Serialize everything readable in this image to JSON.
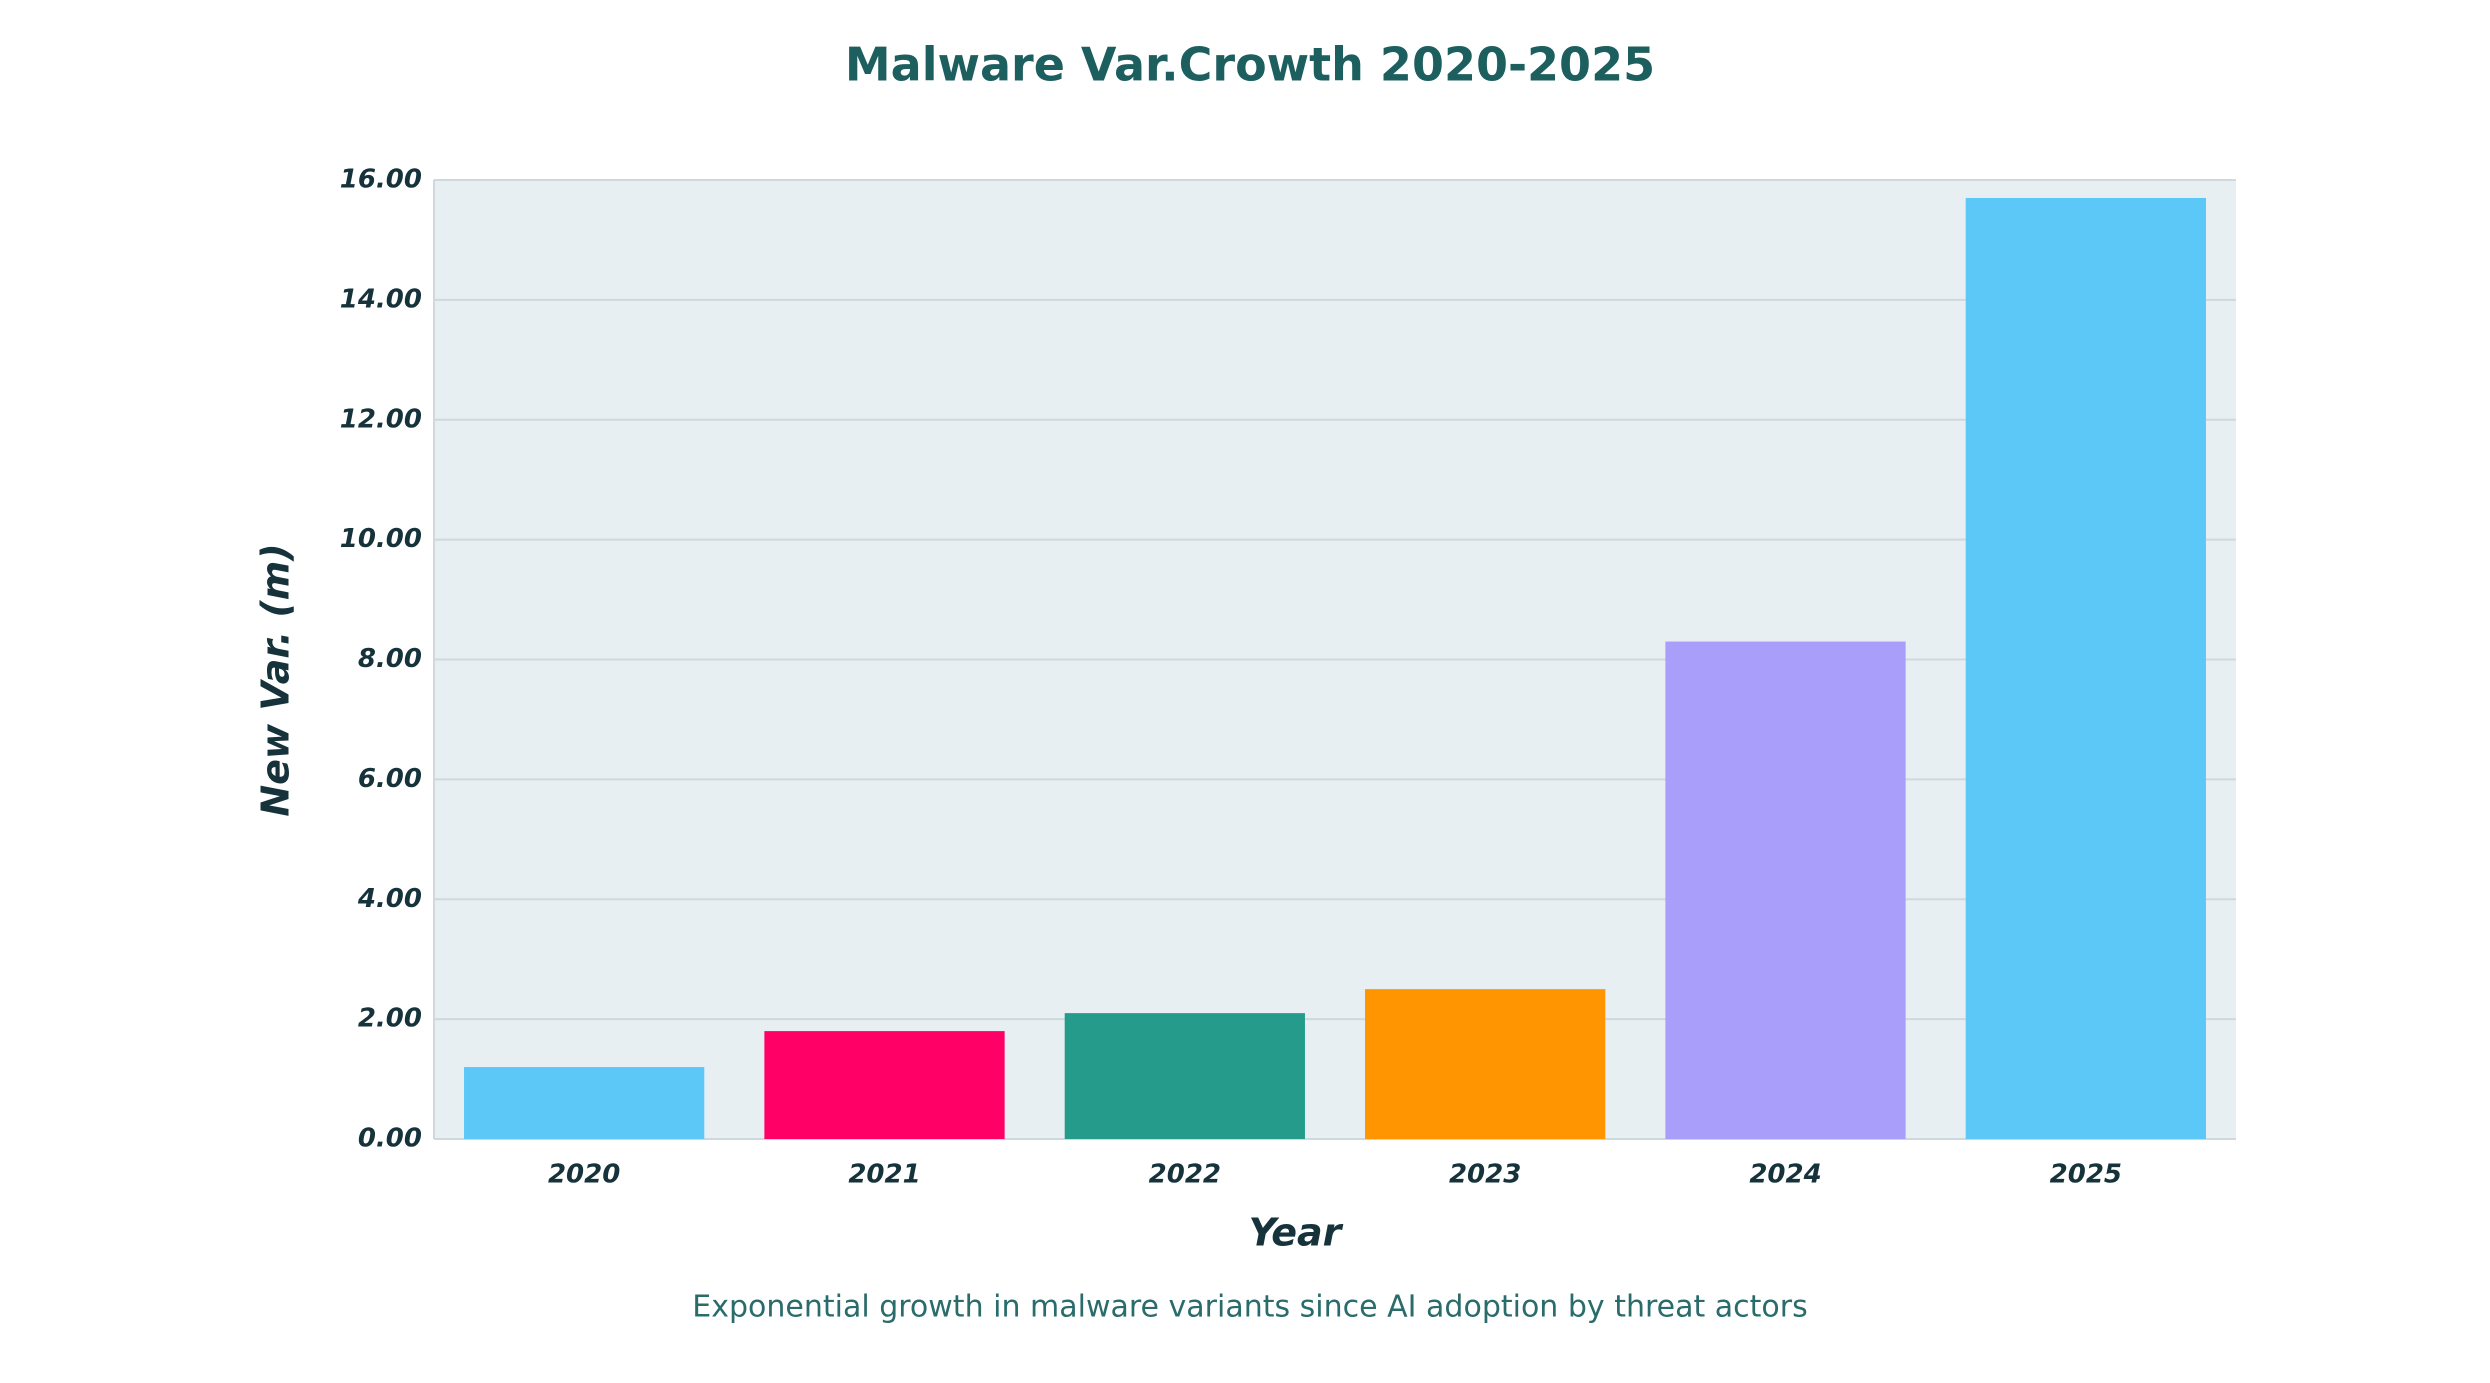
{
  "chart_data": {
    "type": "bar",
    "title": "Malware Var.Crowth 2020-2025",
    "caption": "Exponential growth in malware variants since AI adoption by threat actors",
    "x_label": "Year",
    "y_label": "New Var. (m)",
    "categories": [
      "2020",
      "2021",
      "2022",
      "2023",
      "2024",
      "2025"
    ],
    "values": [
      1.2,
      1.8,
      2.1,
      2.5,
      8.3,
      15.7
    ],
    "colors": [
      "#5bc8f7",
      "#ff0066",
      "#259b8b",
      "#ff9500",
      "#aa9efb",
      "#5bc8f7"
    ],
    "ylim": [
      0,
      16
    ],
    "yticks": [
      {
        "value": 0,
        "label": "0.00"
      },
      {
        "value": 2,
        "label": "2.00"
      },
      {
        "value": 4,
        "label": "4.00"
      },
      {
        "value": 6,
        "label": "6.00"
      },
      {
        "value": 8,
        "label": "8.00"
      },
      {
        "value": 10,
        "label": "10.00"
      },
      {
        "value": 12,
        "label": "12.00"
      },
      {
        "value": 14,
        "label": "14.00"
      },
      {
        "value": 16,
        "label": "16.00"
      }
    ],
    "grid": true
  }
}
